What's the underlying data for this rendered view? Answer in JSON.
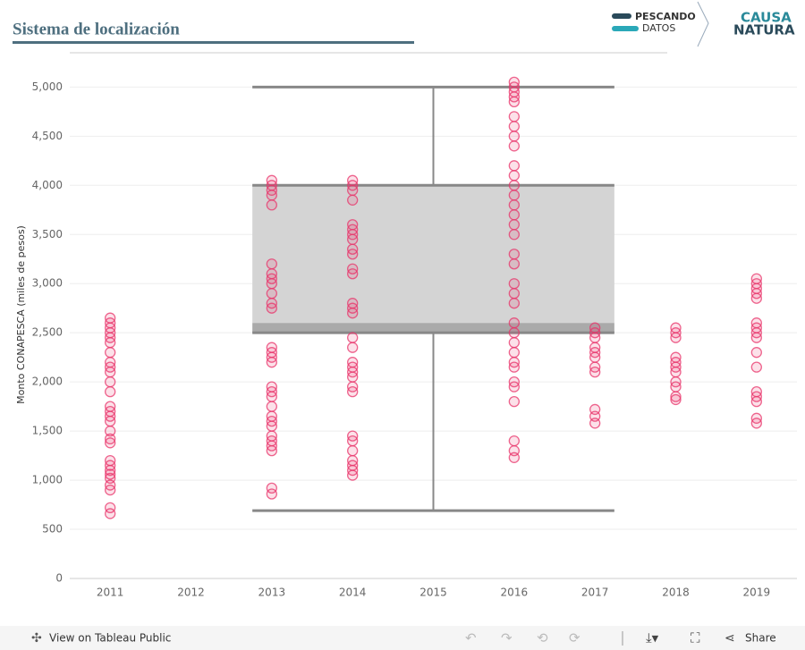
{
  "header": {
    "title": "Sistema de localización",
    "logo_left": [
      "PESCANDO",
      "DATOS"
    ],
    "logo_right": [
      "CAUSA",
      "NATURA"
    ]
  },
  "footer": {
    "view": "View on Tableau Public",
    "share": "Share"
  },
  "chart_data": {
    "type": "scatter",
    "ylabel": "Monto CONAPESCA (miles de pesos)",
    "categories": [
      "2011",
      "2012",
      "2013",
      "2014",
      "2015",
      "2016",
      "2017",
      "2018",
      "2019"
    ],
    "color": "#e8336a",
    "values": [
      [
        660,
        720,
        900,
        950,
        1020,
        1060,
        1100,
        1150,
        1200,
        1380,
        1420,
        1500,
        1600,
        1650,
        1700,
        1750,
        1900,
        2000,
        2100,
        2150,
        2200,
        2300,
        2400,
        2450,
        2500,
        2550,
        2600,
        2650
      ],
      [],
      [
        860,
        920,
        1300,
        1350,
        1400,
        1450,
        1550,
        1600,
        1650,
        1750,
        1850,
        1900,
        1950,
        2200,
        2250,
        2300,
        2350,
        2750,
        2800,
        2900,
        3000,
        3050,
        3100,
        3200,
        3800,
        3900,
        3950,
        4000,
        4050
      ],
      [
        1050,
        1100,
        1150,
        1200,
        1300,
        1400,
        1450,
        1900,
        1950,
        2050,
        2100,
        2150,
        2200,
        2350,
        2450,
        2700,
        2750,
        2800,
        3100,
        3150,
        3300,
        3350,
        3450,
        3500,
        3550,
        3600,
        3850,
        3950,
        4000,
        4050
      ],
      [],
      [
        1230,
        1300,
        1400,
        1800,
        1950,
        2000,
        2150,
        2200,
        2300,
        2400,
        2500,
        2600,
        2800,
        2900,
        3000,
        3200,
        3300,
        3500,
        3600,
        3700,
        3800,
        3900,
        4000,
        4100,
        4200,
        4400,
        4500,
        4600,
        4700,
        4850,
        4900,
        4950,
        5000,
        5050
      ],
      [
        1580,
        1650,
        1720,
        2100,
        2150,
        2250,
        2300,
        2350,
        2450,
        2500,
        2550
      ],
      [
        1820,
        1850,
        1950,
        2000,
        2100,
        2150,
        2200,
        2250,
        2450,
        2500,
        2550
      ],
      [
        1580,
        1630,
        1800,
        1850,
        1900,
        2150,
        2300,
        2450,
        2500,
        2550,
        2600,
        2850,
        2900,
        2950,
        3000,
        3050
      ]
    ],
    "box": {
      "min": 690,
      "q1": 2500,
      "median": 2600,
      "q3": 4000,
      "max": 5000
    },
    "ylim": [
      0,
      5340
    ],
    "yticks": [
      0,
      500,
      {
        "value": 1000,
        "label": "1,000"
      },
      {
        "value": 1500,
        "label": "1,500"
      },
      {
        "value": 2000,
        "label": "2,000"
      },
      {
        "value": 2500,
        "label": "2,500"
      },
      {
        "value": 3000,
        "label": "3,000"
      },
      {
        "value": 3500,
        "label": "3,500"
      },
      {
        "value": 4000,
        "label": "4,000"
      },
      {
        "value": 4500,
        "label": "4,500"
      },
      {
        "value": 5000,
        "label": "5,000"
      }
    ],
    "grid": true
  }
}
